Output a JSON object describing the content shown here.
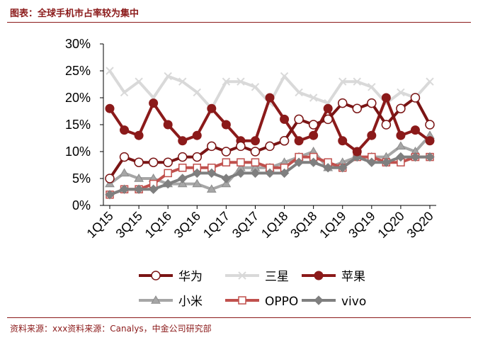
{
  "header": {
    "title": "图表：全球手机市占率较为集中"
  },
  "footer": {
    "source": "资料来源：xxx资料来源：Canalys，中金公司研究部"
  },
  "chart_data": {
    "type": "line",
    "title": "",
    "xlabel": "",
    "ylabel": "",
    "ylim": [
      0,
      0.3
    ],
    "yticks": [
      "0%",
      "5%",
      "10%",
      "15%",
      "20%",
      "25%",
      "30%"
    ],
    "x": [
      "1Q15",
      "2Q15",
      "3Q15",
      "4Q15",
      "1Q16",
      "2Q16",
      "3Q16",
      "4Q16",
      "1Q17",
      "2Q17",
      "3Q17",
      "4Q17",
      "1Q18",
      "2Q18",
      "3Q18",
      "4Q18",
      "1Q19",
      "2Q19",
      "3Q19",
      "4Q19",
      "1Q20",
      "2Q20",
      "3Q20"
    ],
    "xtick_labels": [
      "1Q15",
      "3Q15",
      "1Q16",
      "3Q16",
      "1Q17",
      "3Q17",
      "1Q18",
      "3Q18",
      "1Q19",
      "3Q19",
      "1Q20",
      "3Q20"
    ],
    "series": [
      {
        "name": "三星",
        "color": "#d9d9d9",
        "marker": "x",
        "values": [
          0.25,
          0.21,
          0.23,
          0.2,
          0.24,
          0.23,
          0.21,
          0.18,
          0.23,
          0.23,
          0.22,
          0.19,
          0.24,
          0.21,
          0.2,
          0.19,
          0.23,
          0.23,
          0.22,
          0.19,
          0.21,
          0.2,
          0.23
        ]
      },
      {
        "name": "小米",
        "color": "#a6a6a6",
        "marker": "triangle",
        "values": [
          0.04,
          0.06,
          0.05,
          0.05,
          0.04,
          0.04,
          0.04,
          0.03,
          0.04,
          0.07,
          0.07,
          0.07,
          0.08,
          0.09,
          0.1,
          0.07,
          0.08,
          0.09,
          0.09,
          0.09,
          0.11,
          0.1,
          0.13
        ]
      },
      {
        "name": "OPPO",
        "color": "#c0504d",
        "marker": "square",
        "values": [
          0.02,
          0.03,
          0.03,
          0.04,
          0.06,
          0.07,
          0.07,
          0.07,
          0.08,
          0.08,
          0.08,
          0.07,
          0.07,
          0.09,
          0.09,
          0.08,
          0.07,
          0.09,
          0.09,
          0.08,
          0.08,
          0.09,
          0.09
        ]
      },
      {
        "name": "vivo",
        "color": "#7f7f7f",
        "marker": "diamond",
        "values": [
          0.02,
          0.03,
          0.03,
          0.03,
          0.04,
          0.05,
          0.06,
          0.06,
          0.05,
          0.06,
          0.06,
          0.06,
          0.06,
          0.08,
          0.08,
          0.07,
          0.07,
          0.09,
          0.08,
          0.08,
          0.09,
          0.09,
          0.09
        ]
      },
      {
        "name": "苹果",
        "color": "#8b1a1a",
        "marker": "circle-filled",
        "values": [
          0.18,
          0.14,
          0.13,
          0.19,
          0.15,
          0.12,
          0.13,
          0.18,
          0.15,
          0.12,
          0.12,
          0.2,
          0.16,
          0.12,
          0.13,
          0.18,
          0.12,
          0.1,
          0.13,
          0.2,
          0.13,
          0.14,
          0.12
        ]
      },
      {
        "name": "华为",
        "color": "#7a1414",
        "marker": "circle-open",
        "values": [
          0.05,
          0.09,
          0.08,
          0.08,
          0.08,
          0.09,
          0.09,
          0.11,
          0.1,
          0.11,
          0.1,
          0.11,
          0.12,
          0.16,
          0.15,
          0.16,
          0.19,
          0.18,
          0.19,
          0.15,
          0.18,
          0.2,
          0.15
        ]
      }
    ],
    "legend_order": [
      "华为",
      "三星",
      "苹果",
      "小米",
      "OPPO",
      "vivo"
    ],
    "legend_placement": "bottom",
    "grid": false
  }
}
